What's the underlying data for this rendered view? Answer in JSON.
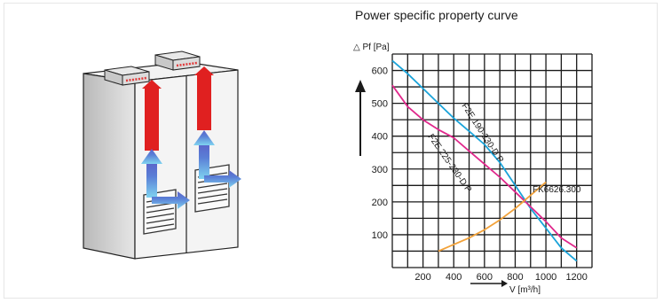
{
  "chart_data": {
    "type": "line",
    "title": "Power specific property curve",
    "xlabel": "V [m³/h]",
    "ylabel": "△ Pf [Pa]",
    "xlim": [
      0,
      1300
    ],
    "ylim": [
      0,
      650
    ],
    "xticks": [
      200,
      400,
      600,
      800,
      1000,
      1200
    ],
    "yticks": [
      100,
      200,
      300,
      400,
      500,
      600
    ],
    "grid": true,
    "series": [
      {
        "name": "F2E 190-230-D P",
        "color": "#1aa3d9",
        "x": [
          0,
          100,
          200,
          300,
          400,
          500,
          600,
          700,
          800,
          900,
          1000,
          1100,
          1200
        ],
        "y": [
          630,
          590,
          545,
          500,
          455,
          415,
          375,
          320,
          250,
          180,
          120,
          60,
          20
        ]
      },
      {
        "name": "F2E 225-230-D P",
        "color": "#e0288c",
        "x": [
          0,
          100,
          200,
          300,
          400,
          500,
          600,
          700,
          800,
          900,
          1000,
          1100,
          1200
        ],
        "y": [
          555,
          490,
          450,
          420,
          395,
          355,
          315,
          275,
          230,
          185,
          140,
          90,
          60
        ]
      },
      {
        "name": "FK6626.300",
        "color": "#f2a23a",
        "x": [
          300,
          400,
          500,
          600,
          700,
          800,
          900,
          1000
        ],
        "y": [
          50,
          70,
          90,
          115,
          145,
          180,
          220,
          260
        ]
      }
    ]
  }
}
